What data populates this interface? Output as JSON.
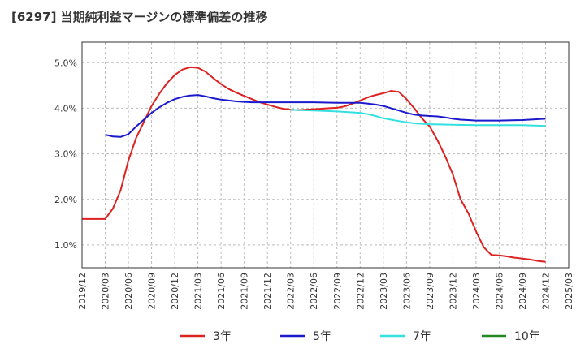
{
  "chart_data": {
    "type": "line",
    "title": "[6297]  当期純利益マージンの標準偏差の推移",
    "xlabel": "",
    "ylabel": "",
    "y_unit": "%",
    "ylim": [
      0.5,
      5.45
    ],
    "y_ticks": [
      1.0,
      2.0,
      3.0,
      4.0,
      5.0
    ],
    "y_tick_labels": [
      "1.0%",
      "2.0%",
      "3.0%",
      "4.0%",
      "5.0%"
    ],
    "x_tick_labels": [
      "2019/12",
      "2020/03",
      "2020/06",
      "2020/09",
      "2020/12",
      "2021/03",
      "2021/06",
      "2021/09",
      "2021/12",
      "2022/03",
      "2022/06",
      "2022/09",
      "2022/12",
      "2023/03",
      "2023/06",
      "2023/09",
      "2023/12",
      "2024/03",
      "2024/06",
      "2024/09",
      "2024/12",
      "2025/03"
    ],
    "grid": true,
    "legend_position": "bottom",
    "series": [
      {
        "name": "3年",
        "color": "#dd2222",
        "points": [
          [
            "2019/12",
            1.57
          ],
          [
            "2020/01",
            1.57
          ],
          [
            "2020/02",
            1.57
          ],
          [
            "2020/03",
            1.57
          ],
          [
            "2020/04",
            1.8
          ],
          [
            "2020/05",
            2.2
          ],
          [
            "2020/06",
            2.85
          ],
          [
            "2020/07",
            3.35
          ],
          [
            "2020/08",
            3.7
          ],
          [
            "2020/09",
            4.05
          ],
          [
            "2020/10",
            4.32
          ],
          [
            "2020/11",
            4.55
          ],
          [
            "2020/12",
            4.73
          ],
          [
            "2021/01",
            4.85
          ],
          [
            "2021/02",
            4.9
          ],
          [
            "2021/03",
            4.89
          ],
          [
            "2021/04",
            4.8
          ],
          [
            "2021/05",
            4.66
          ],
          [
            "2021/06",
            4.53
          ],
          [
            "2021/07",
            4.42
          ],
          [
            "2021/08",
            4.34
          ],
          [
            "2021/09",
            4.27
          ],
          [
            "2021/10",
            4.2
          ],
          [
            "2021/11",
            4.13
          ],
          [
            "2021/12",
            4.08
          ],
          [
            "2022/01",
            4.03
          ],
          [
            "2022/02",
            3.99
          ],
          [
            "2022/03",
            3.97
          ],
          [
            "2022/04",
            3.96
          ],
          [
            "2022/05",
            3.97
          ],
          [
            "2022/06",
            3.98
          ],
          [
            "2022/07",
            3.99
          ],
          [
            "2022/08",
            4.0
          ],
          [
            "2022/09",
            4.01
          ],
          [
            "2022/10",
            4.04
          ],
          [
            "2022/11",
            4.1
          ],
          [
            "2022/12",
            4.17
          ],
          [
            "2023/01",
            4.24
          ],
          [
            "2023/02",
            4.29
          ],
          [
            "2023/03",
            4.33
          ],
          [
            "2023/04",
            4.38
          ],
          [
            "2023/05",
            4.36
          ],
          [
            "2023/06",
            4.2
          ],
          [
            "2023/07",
            4.0
          ],
          [
            "2023/08",
            3.78
          ],
          [
            "2023/09",
            3.6
          ],
          [
            "2023/10",
            3.3
          ],
          [
            "2023/11",
            2.95
          ],
          [
            "2023/12",
            2.55
          ],
          [
            "2024/01",
            2.0
          ],
          [
            "2024/02",
            1.7
          ],
          [
            "2024/03",
            1.3
          ],
          [
            "2024/04",
            0.95
          ],
          [
            "2024/05",
            0.78
          ],
          [
            "2024/06",
            0.77
          ],
          [
            "2024/07",
            0.75
          ],
          [
            "2024/08",
            0.72
          ],
          [
            "2024/09",
            0.7
          ],
          [
            "2024/10",
            0.68
          ],
          [
            "2024/11",
            0.65
          ],
          [
            "2024/12",
            0.63
          ]
        ]
      },
      {
        "name": "5年",
        "color": "#1a1acc",
        "points": [
          [
            "2020/03",
            3.42
          ],
          [
            "2020/04",
            3.38
          ],
          [
            "2020/05",
            3.37
          ],
          [
            "2020/06",
            3.43
          ],
          [
            "2020/07",
            3.6
          ],
          [
            "2020/08",
            3.75
          ],
          [
            "2020/09",
            3.9
          ],
          [
            "2020/10",
            4.02
          ],
          [
            "2020/11",
            4.12
          ],
          [
            "2020/12",
            4.2
          ],
          [
            "2021/01",
            4.25
          ],
          [
            "2021/02",
            4.28
          ],
          [
            "2021/03",
            4.29
          ],
          [
            "2021/04",
            4.26
          ],
          [
            "2021/05",
            4.22
          ],
          [
            "2021/06",
            4.19
          ],
          [
            "2021/07",
            4.17
          ],
          [
            "2021/08",
            4.15
          ],
          [
            "2021/09",
            4.14
          ],
          [
            "2021/10",
            4.13
          ],
          [
            "2021/11",
            4.13
          ],
          [
            "2021/12",
            4.13
          ],
          [
            "2022/03",
            4.13
          ],
          [
            "2022/06",
            4.13
          ],
          [
            "2022/09",
            4.12
          ],
          [
            "2022/12",
            4.12
          ],
          [
            "2023/01",
            4.1
          ],
          [
            "2023/02",
            4.08
          ],
          [
            "2023/03",
            4.05
          ],
          [
            "2023/04",
            4.0
          ],
          [
            "2023/05",
            3.95
          ],
          [
            "2023/06",
            3.9
          ],
          [
            "2023/07",
            3.86
          ],
          [
            "2023/08",
            3.84
          ],
          [
            "2023/09",
            3.83
          ],
          [
            "2023/10",
            3.82
          ],
          [
            "2023/11",
            3.8
          ],
          [
            "2023/12",
            3.77
          ],
          [
            "2024/01",
            3.75
          ],
          [
            "2024/02",
            3.74
          ],
          [
            "2024/03",
            3.73
          ],
          [
            "2024/06",
            3.73
          ],
          [
            "2024/09",
            3.74
          ],
          [
            "2024/12",
            3.77
          ]
        ]
      },
      {
        "name": "7年",
        "color": "#33e0e0",
        "points": [
          [
            "2022/03",
            3.97
          ],
          [
            "2022/04",
            3.96
          ],
          [
            "2022/06",
            3.95
          ],
          [
            "2022/09",
            3.93
          ],
          [
            "2022/12",
            3.9
          ],
          [
            "2023/01",
            3.87
          ],
          [
            "2023/02",
            3.83
          ],
          [
            "2023/03",
            3.78
          ],
          [
            "2023/04",
            3.75
          ],
          [
            "2023/05",
            3.72
          ],
          [
            "2023/06",
            3.69
          ],
          [
            "2023/07",
            3.67
          ],
          [
            "2023/09",
            3.65
          ],
          [
            "2023/12",
            3.64
          ],
          [
            "2024/03",
            3.63
          ],
          [
            "2024/06",
            3.63
          ],
          [
            "2024/09",
            3.63
          ],
          [
            "2024/12",
            3.61
          ]
        ]
      },
      {
        "name": "10年",
        "color": "#228822",
        "points": []
      }
    ]
  }
}
